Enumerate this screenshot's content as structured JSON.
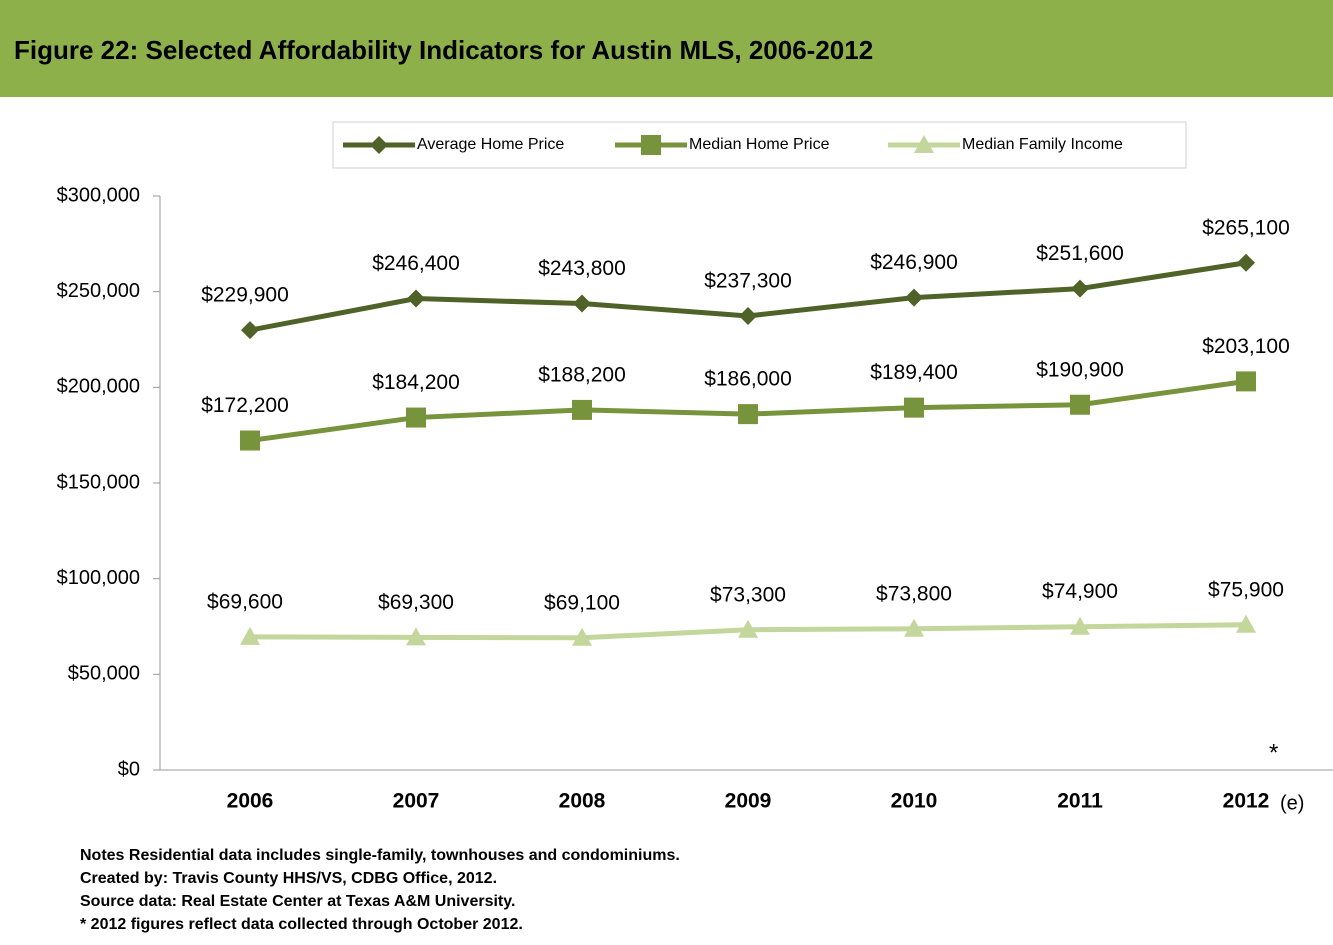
{
  "chart_data": {
    "type": "line",
    "title": "Figure 22: Selected Affordability Indicators for Austin MLS, 2006-2012",
    "categories": [
      "2006",
      "2007",
      "2008",
      "2009",
      "2010",
      "2011",
      "2012"
    ],
    "series": [
      {
        "name": "Average Home Price",
        "color": "#4f6228",
        "marker": "diamond",
        "values": [
          229900,
          246400,
          243800,
          237300,
          246900,
          251600,
          265100
        ],
        "value_labels": [
          "$229,900",
          "$246,400",
          "$243,800",
          "$237,300",
          "$246,900",
          "$251,600",
          "$265,100"
        ]
      },
      {
        "name": "Median Home Price",
        "color": "#77933c",
        "marker": "square",
        "values": [
          172200,
          184200,
          188200,
          186000,
          189400,
          190900,
          203100
        ],
        "value_labels": [
          "$172,200",
          "$184,200",
          "$188,200",
          "$186,000",
          "$189,400",
          "$190,900",
          "$203,100"
        ]
      },
      {
        "name": "Median Family Income",
        "color": "#c3d69b",
        "marker": "triangle",
        "values": [
          69600,
          69300,
          69100,
          73300,
          73800,
          74900,
          75900
        ],
        "value_labels": [
          "$69,600",
          "$69,300",
          "$69,100",
          "$73,300",
          "$73,800",
          "$74,900",
          "$75,900"
        ]
      }
    ],
    "ylim": [
      0,
      300000
    ],
    "yticks": [
      {
        "value": 0,
        "label": "$0"
      },
      {
        "value": 50000,
        "label": "$50,000"
      },
      {
        "value": 100000,
        "label": "$100,000"
      },
      {
        "value": 150000,
        "label": "$150,000"
      },
      {
        "value": 200000,
        "label": "$200,000"
      },
      {
        "value": 250000,
        "label": "$250,000"
      },
      {
        "value": 300000,
        "label": "$300,000"
      }
    ],
    "legend": "top",
    "annotations": [
      "(e)",
      "*"
    ],
    "notes": [
      "Notes Residential data includes single-family, townhouses and condominiums.",
      "Created by: Travis County HHS/VS, CDBG Office, 2012.",
      "Source data:  Real Estate Center at Texas A&M University.",
      "* 2012 figures reflect data collected through October 2012."
    ]
  }
}
